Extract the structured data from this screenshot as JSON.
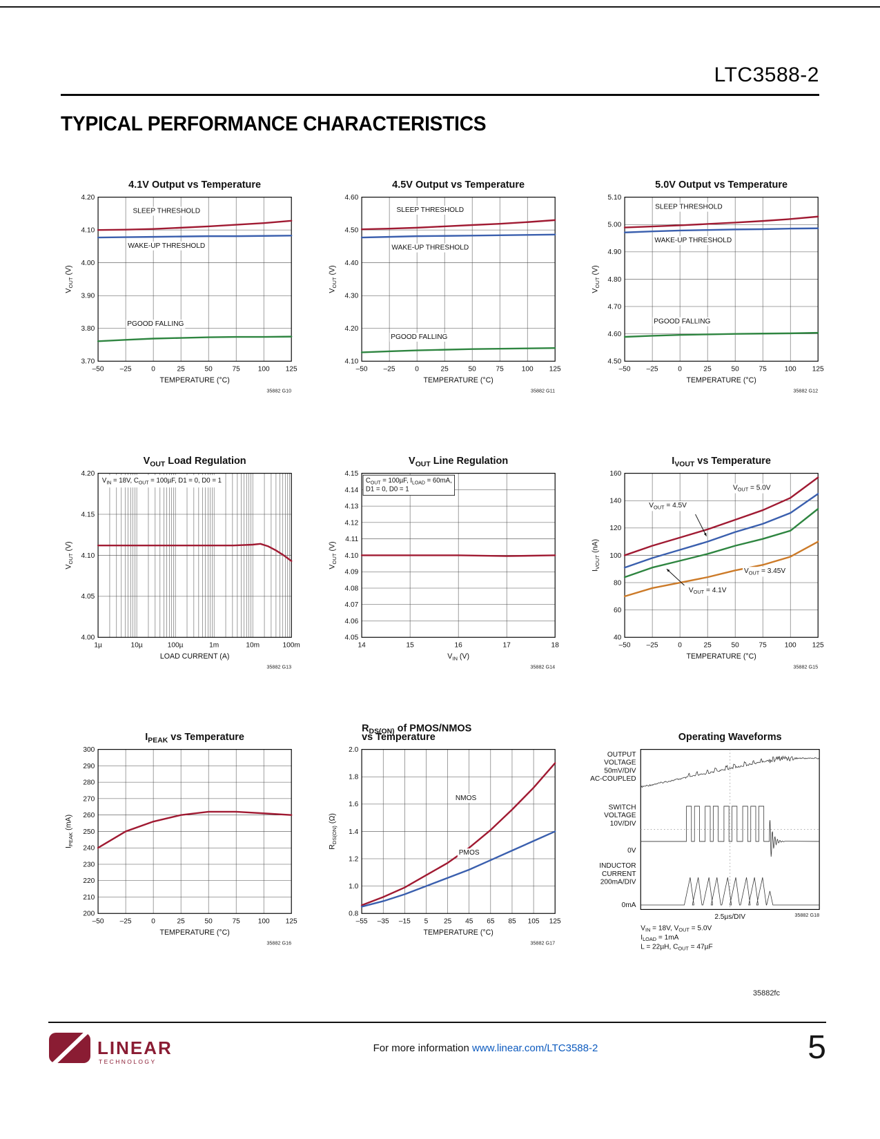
{
  "page": {
    "part_number": "LTC3588-2",
    "section_title": "TYPICAL PERFORMANCE CHARACTERISTICS",
    "doc_code": "35882fc",
    "footer": {
      "info_prefix": "For more information ",
      "info_link": "www.linear.com/LTC3588-2",
      "page_number": "5",
      "logo_main": "LINEAR",
      "logo_sub": "TECHNOLOGY"
    }
  },
  "colors": {
    "red": "#a01a32",
    "blue": "#3a5fae",
    "green": "#2e8540",
    "orange": "#cc7a28",
    "link": "#0d5bbf",
    "logo_red": "#8a1c33"
  },
  "chart_data": [
    {
      "id": "35882 G10",
      "type": "line",
      "title": "4.1V Output vs Temperature",
      "xlabel": "TEMPERATURE (°C)",
      "ylabel": "V_{OUT} (V)",
      "xlim": [
        -50,
        125
      ],
      "ylim": [
        3.7,
        4.2
      ],
      "xticks": [
        -50,
        -25,
        0,
        25,
        50,
        75,
        100,
        125
      ],
      "yticks": [
        3.7,
        3.8,
        3.9,
        4.0,
        4.1,
        4.2
      ],
      "ydec": 2,
      "series": [
        {
          "name": "SLEEP THRESHOLD",
          "color": "red",
          "x": [
            -50,
            -25,
            0,
            25,
            50,
            75,
            100,
            125
          ],
          "y": [
            4.1,
            4.101,
            4.103,
            4.107,
            4.111,
            4.116,
            4.121,
            4.128
          ]
        },
        {
          "name": "WAKE-UP THRESHOLD",
          "color": "blue",
          "x": [
            -50,
            -25,
            0,
            25,
            50,
            75,
            100,
            125
          ],
          "y": [
            4.077,
            4.078,
            4.079,
            4.08,
            4.081,
            4.081,
            4.082,
            4.083
          ]
        },
        {
          "name": "PGOOD FALLING",
          "color": "green",
          "x": [
            -50,
            -25,
            0,
            25,
            50,
            75,
            100,
            125
          ],
          "y": [
            3.761,
            3.765,
            3.769,
            3.771,
            3.773,
            3.774,
            3.774,
            3.775
          ]
        }
      ],
      "labels": [
        {
          "text": "SLEEP THRESHOLD",
          "x": 12,
          "y": 4.152
        },
        {
          "text": "WAKE-UP THRESHOLD",
          "x": 12,
          "y": 4.046
        },
        {
          "text": "PGOOD FALLING",
          "x": 2,
          "y": 3.808
        }
      ]
    },
    {
      "id": "35882 G11",
      "type": "line",
      "title": "4.5V Output vs Temperature",
      "xlabel": "TEMPERATURE (°C)",
      "ylabel": "V_{OUT} (V)",
      "xlim": [
        -50,
        125
      ],
      "ylim": [
        4.1,
        4.6
      ],
      "xticks": [
        -50,
        -25,
        0,
        25,
        50,
        75,
        100,
        125
      ],
      "yticks": [
        4.1,
        4.2,
        4.3,
        4.4,
        4.5,
        4.6
      ],
      "ydec": 2,
      "series": [
        {
          "name": "SLEEP THRESHOLD",
          "color": "red",
          "x": [
            -50,
            -25,
            0,
            25,
            50,
            75,
            100,
            125
          ],
          "y": [
            4.502,
            4.504,
            4.507,
            4.511,
            4.515,
            4.519,
            4.524,
            4.53
          ]
        },
        {
          "name": "WAKE-UP THRESHOLD",
          "color": "blue",
          "x": [
            -50,
            -25,
            0,
            25,
            50,
            75,
            100,
            125
          ],
          "y": [
            4.477,
            4.479,
            4.481,
            4.482,
            4.483,
            4.484,
            4.485,
            4.486
          ]
        },
        {
          "name": "PGOOD FALLING",
          "color": "green",
          "x": [
            -50,
            -25,
            0,
            25,
            50,
            75,
            100,
            125
          ],
          "y": [
            4.127,
            4.13,
            4.133,
            4.135,
            4.137,
            4.138,
            4.139,
            4.14
          ]
        }
      ],
      "labels": [
        {
          "text": "SLEEP THRESHOLD",
          "x": 12,
          "y": 4.555
        },
        {
          "text": "WAKE-UP THRESHOLD",
          "x": 12,
          "y": 4.44
        },
        {
          "text": "PGOOD FALLING",
          "x": 2,
          "y": 4.168
        }
      ]
    },
    {
      "id": "35882 G12",
      "type": "line",
      "title": "5.0V Output vs Temperature",
      "xlabel": "TEMPERATURE (°C)",
      "ylabel": "V_{OUT} (V)",
      "xlim": [
        -50,
        125
      ],
      "ylim": [
        4.5,
        5.1
      ],
      "xticks": [
        -50,
        -25,
        0,
        25,
        50,
        75,
        100,
        125
      ],
      "yticks": [
        4.5,
        4.6,
        4.7,
        4.8,
        4.9,
        5.0,
        5.1
      ],
      "ydec": 2,
      "series": [
        {
          "name": "SLEEP THRESHOLD",
          "color": "red",
          "x": [
            -50,
            -25,
            0,
            25,
            50,
            75,
            100,
            125
          ],
          "y": [
            4.989,
            4.993,
            4.997,
            5.002,
            5.007,
            5.013,
            5.02,
            5.029
          ]
        },
        {
          "name": "WAKE-UP THRESHOLD",
          "color": "blue",
          "x": [
            -50,
            -25,
            0,
            25,
            50,
            75,
            100,
            125
          ],
          "y": [
            4.971,
            4.975,
            4.978,
            4.98,
            4.982,
            4.983,
            4.985,
            4.986
          ]
        },
        {
          "name": "PGOOD FALLING",
          "color": "green",
          "x": [
            -50,
            -25,
            0,
            25,
            50,
            75,
            100,
            125
          ],
          "y": [
            4.589,
            4.593,
            4.596,
            4.598,
            4.6,
            4.601,
            4.602,
            4.604
          ]
        }
      ],
      "labels": [
        {
          "text": "SLEEP THRESHOLD",
          "x": 8,
          "y": 5.057
        },
        {
          "text": "WAKE-UP THRESHOLD",
          "x": 12,
          "y": 4.935
        },
        {
          "text": "PGOOD FALLING",
          "x": 2,
          "y": 4.638
        }
      ]
    },
    {
      "id": "35882 G13",
      "type": "line",
      "title": "V_{OUT} Load Regulation",
      "xlabel": "LOAD CURRENT (A)",
      "ylabel": "V_{OUT} (V)",
      "xscale": "log",
      "log_minor": true,
      "xlim": [
        -6,
        -1
      ],
      "xticks": [
        -6,
        -5,
        -4,
        -3,
        -2,
        -1
      ],
      "xtick_labels": [
        "1µ",
        "10µ",
        "100µ",
        "1m",
        "10m",
        "100m"
      ],
      "ylim": [
        4.0,
        4.2
      ],
      "yticks": [
        4.0,
        4.05,
        4.1,
        4.15,
        4.2
      ],
      "ydec": 2,
      "annotation": {
        "lines": [
          "V_{IN} = 18V, C_{OUT} = 100µF, D1 = 0, D0 = 1"
        ],
        "box": false
      },
      "series": [
        {
          "name": "V_{OUT}",
          "color": "red",
          "x": [
            -6,
            -5,
            -4,
            -3,
            -2.5,
            -2,
            -1.8,
            -1.6,
            -1.4,
            -1.2,
            -1
          ],
          "y": [
            4.112,
            4.112,
            4.112,
            4.112,
            4.112,
            4.113,
            4.114,
            4.111,
            4.106,
            4.1,
            4.093
          ]
        }
      ]
    },
    {
      "id": "35882 G14",
      "type": "line",
      "title": "V_{OUT} Line Regulation",
      "xlabel": "V_{IN} (V)",
      "ylabel": "V_{OUT} (V)",
      "xlim": [
        14,
        18
      ],
      "xticks": [
        14,
        15,
        16,
        17,
        18
      ],
      "ylim": [
        4.05,
        4.15
      ],
      "yticks": [
        4.05,
        4.06,
        4.07,
        4.08,
        4.09,
        4.1,
        4.11,
        4.12,
        4.13,
        4.14,
        4.15
      ],
      "ydec": 2,
      "annotation": {
        "lines": [
          "C_{OUT} = 100µF, I_{LOAD} = 60mA,",
          "D1 = 0, D0 = 1"
        ],
        "box": true
      },
      "series": [
        {
          "name": "V_{OUT}",
          "color": "red",
          "x": [
            14,
            15,
            16,
            17,
            18
          ],
          "y": [
            4.1,
            4.1,
            4.1,
            4.0995,
            4.1
          ]
        }
      ]
    },
    {
      "id": "35882 G15",
      "type": "line",
      "title": "I_{VOUT} vs Temperature",
      "xlabel": "TEMPERATURE (°C)",
      "ylabel": "I_{VOUT} (nA)",
      "xlim": [
        -50,
        125
      ],
      "ylim": [
        40,
        160
      ],
      "xticks": [
        -50,
        -25,
        0,
        25,
        50,
        75,
        100,
        125
      ],
      "yticks": [
        40,
        60,
        80,
        100,
        120,
        140,
        160
      ],
      "ydec": 0,
      "series": [
        {
          "name": "V_{OUT} = 5.0V",
          "color": "red",
          "x": [
            -50,
            -25,
            0,
            25,
            50,
            75,
            100,
            125
          ],
          "y": [
            100,
            107,
            113,
            119,
            126,
            133,
            142,
            157
          ]
        },
        {
          "name": "V_{OUT} = 4.5V",
          "color": "blue",
          "x": [
            -50,
            -25,
            0,
            25,
            50,
            75,
            100,
            125
          ],
          "y": [
            91,
            98,
            104,
            110,
            117,
            123,
            131,
            145
          ]
        },
        {
          "name": "V_{OUT} = 4.1V",
          "color": "green",
          "x": [
            -50,
            -25,
            0,
            25,
            50,
            75,
            100,
            125
          ],
          "y": [
            84,
            91,
            96,
            101,
            107,
            112,
            118,
            134
          ]
        },
        {
          "name": "V_{OUT} = 3.45V",
          "color": "orange",
          "x": [
            -50,
            -25,
            0,
            25,
            50,
            75,
            100,
            125
          ],
          "y": [
            70,
            76,
            80,
            84,
            89,
            93,
            99,
            110
          ]
        }
      ],
      "labels": [
        {
          "text": "V_{OUT} = 5.0V",
          "x": 48,
          "y": 148,
          "anchor": "start"
        },
        {
          "text": "V_{OUT} = 4.5V",
          "x": -28,
          "y": 135,
          "anchor": "start",
          "arrow": {
            "x1": 14,
            "y1": 130,
            "x2": 24,
            "y2": 114
          }
        },
        {
          "text": "V_{OUT} = 3.45V",
          "x": 58,
          "y": 87,
          "anchor": "start"
        },
        {
          "text": "V_{OUT} = 4.1V",
          "x": 8,
          "y": 73,
          "anchor": "start",
          "arrow": {
            "x1": 4,
            "y1": 78,
            "x2": -12,
            "y2": 90
          }
        }
      ]
    },
    {
      "id": "35882 G16",
      "type": "line",
      "title": "I_{PEAK} vs Temperature",
      "xlabel": "TEMPERATURE (°C)",
      "ylabel": "I_{PEAK} (mA)",
      "xlim": [
        -50,
        125
      ],
      "ylim": [
        200,
        300
      ],
      "xticks": [
        -50,
        -25,
        0,
        25,
        50,
        75,
        100,
        125
      ],
      "yticks": [
        200,
        210,
        220,
        230,
        240,
        250,
        260,
        270,
        280,
        290,
        300
      ],
      "ydec": 0,
      "series": [
        {
          "name": "I_{PEAK}",
          "color": "red",
          "x": [
            -50,
            -25,
            0,
            25,
            50,
            75,
            100,
            125
          ],
          "y": [
            240,
            250,
            256,
            260,
            262,
            262,
            261,
            260
          ]
        }
      ]
    },
    {
      "id": "35882 G17",
      "type": "line",
      "title_lines": [
        "R_{DS(ON)} of PMOS/NMOS",
        "vs Temperature"
      ],
      "title_align": "left",
      "xlabel": "TEMPERATURE (°C)",
      "ylabel": "R_{DS(ON)} (Ω)",
      "xlim": [
        -55,
        125
      ],
      "ylim": [
        0.8,
        2.0
      ],
      "xticks": [
        -55,
        -35,
        -15,
        5,
        25,
        45,
        65,
        85,
        105,
        125
      ],
      "yticks": [
        0.8,
        1.0,
        1.2,
        1.4,
        1.6,
        1.8,
        2.0
      ],
      "ydec": 1,
      "series": [
        {
          "name": "NMOS",
          "color": "red",
          "x": [
            -55,
            -35,
            -15,
            5,
            25,
            45,
            65,
            85,
            105,
            125
          ],
          "y": [
            0.86,
            0.92,
            0.99,
            1.08,
            1.17,
            1.28,
            1.41,
            1.56,
            1.72,
            1.9
          ]
        },
        {
          "name": "PMOS",
          "color": "blue",
          "x": [
            -55,
            -35,
            -15,
            5,
            25,
            45,
            65,
            85,
            105,
            125
          ],
          "y": [
            0.85,
            0.89,
            0.94,
            1.0,
            1.06,
            1.12,
            1.19,
            1.26,
            1.33,
            1.4
          ]
        }
      ],
      "labels": [
        {
          "text": "NMOS",
          "x": 42,
          "y": 1.63
        },
        {
          "text": "PMOS",
          "x": 45,
          "y": 1.23
        }
      ]
    },
    {
      "id": "35882 G18",
      "type": "scope",
      "title": "Operating Waveforms",
      "timebase": "2.5µs/DIV",
      "left_labels": [
        {
          "lines": [
            "OUTPUT",
            "VOLTAGE",
            "50mV/DIV",
            "AC-COUPLED"
          ],
          "y": 0.045
        },
        {
          "lines": [
            "SWITCH",
            "VOLTAGE",
            "10V/DIV"
          ],
          "y": 0.375
        },
        {
          "lines": [
            "0V"
          ],
          "y": 0.645
        },
        {
          "lines": [
            "INDUCTOR",
            "CURRENT",
            "200mA/DIV"
          ],
          "y": 0.74
        },
        {
          "lines": [
            "0mA"
          ],
          "y": 0.985
        }
      ],
      "pulses": [
        0.27,
        0.315,
        0.375,
        0.42,
        0.48,
        0.525,
        0.585,
        0.63,
        0.675
      ],
      "ring_x": 0.72,
      "conditions": [
        "V_{IN} = 18V, V_{OUT} = 5.0V",
        "I_{LOAD} = 1mA",
        "L = 22µH, C_{OUT} = 47µF"
      ]
    }
  ]
}
